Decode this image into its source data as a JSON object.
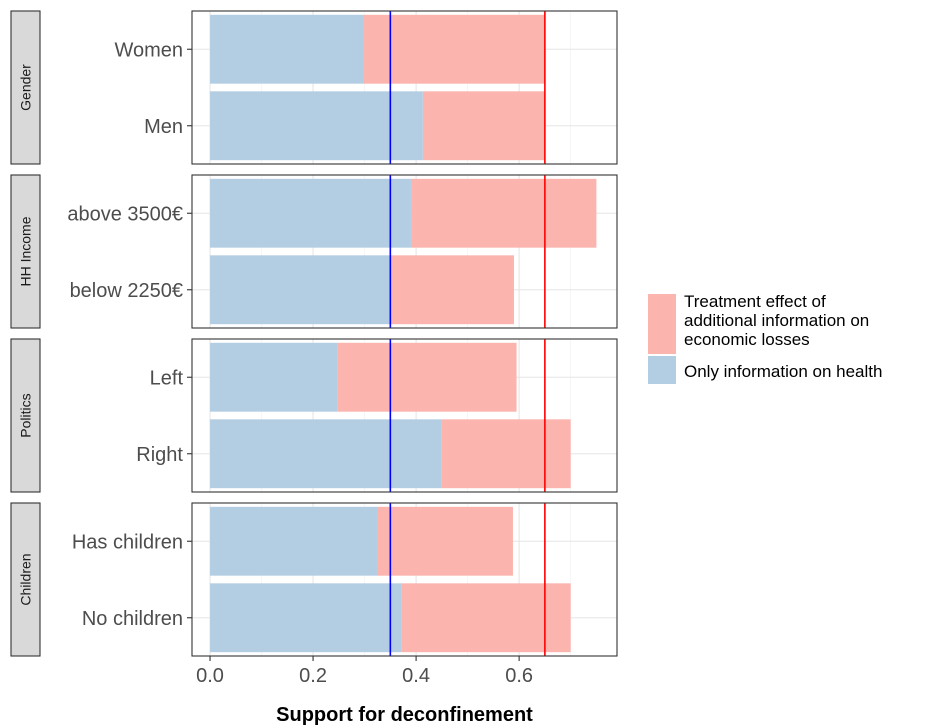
{
  "chart_data": {
    "type": "bar",
    "orientation": "horizontal",
    "stacked": true,
    "xlabel": "Support for deconfinement",
    "ylabel": "",
    "xlim": [
      -0.035,
      0.79
    ],
    "x_ticks": [
      0.0,
      0.2,
      0.4,
      0.6
    ],
    "x_tick_labels": [
      "0.0",
      "0.2",
      "0.4",
      "0.6"
    ],
    "grid": true,
    "legend_position": "right",
    "colors": {
      "base": "#b3cde3",
      "effect": "#fbb4ae",
      "blue_line": "#0000ff",
      "red_line": "#ff0000"
    },
    "reference_lines": [
      {
        "x": 0.35,
        "color": "#0000ff"
      },
      {
        "x": 0.65,
        "color": "#ff0000"
      }
    ],
    "legend": [
      {
        "key": "effect",
        "lines": [
          "Treatment effect of",
          "additional information on",
          "economic losses"
        ]
      },
      {
        "key": "base",
        "lines": [
          "Only information on health"
        ]
      }
    ],
    "panels": [
      {
        "facet": "Gender",
        "categories": [
          {
            "label": "Women",
            "base": 0.297,
            "total": 0.65
          },
          {
            "label": "Men",
            "base": 0.413,
            "total": 0.65
          }
        ]
      },
      {
        "facet": "HH Income",
        "categories": [
          {
            "label": "above 3500€",
            "base": 0.39,
            "total": 0.75
          },
          {
            "label": "below 2250€",
            "base": 0.35,
            "total": 0.59
          }
        ]
      },
      {
        "facet": "Politics",
        "categories": [
          {
            "label": "Left",
            "base": 0.247,
            "total": 0.595
          },
          {
            "label": "Right",
            "base": 0.45,
            "total": 0.7
          }
        ]
      },
      {
        "facet": "Children",
        "categories": [
          {
            "label": "Has children",
            "base": 0.325,
            "total": 0.588
          },
          {
            "label": "No children",
            "base": 0.372,
            "total": 0.7
          }
        ]
      }
    ]
  }
}
